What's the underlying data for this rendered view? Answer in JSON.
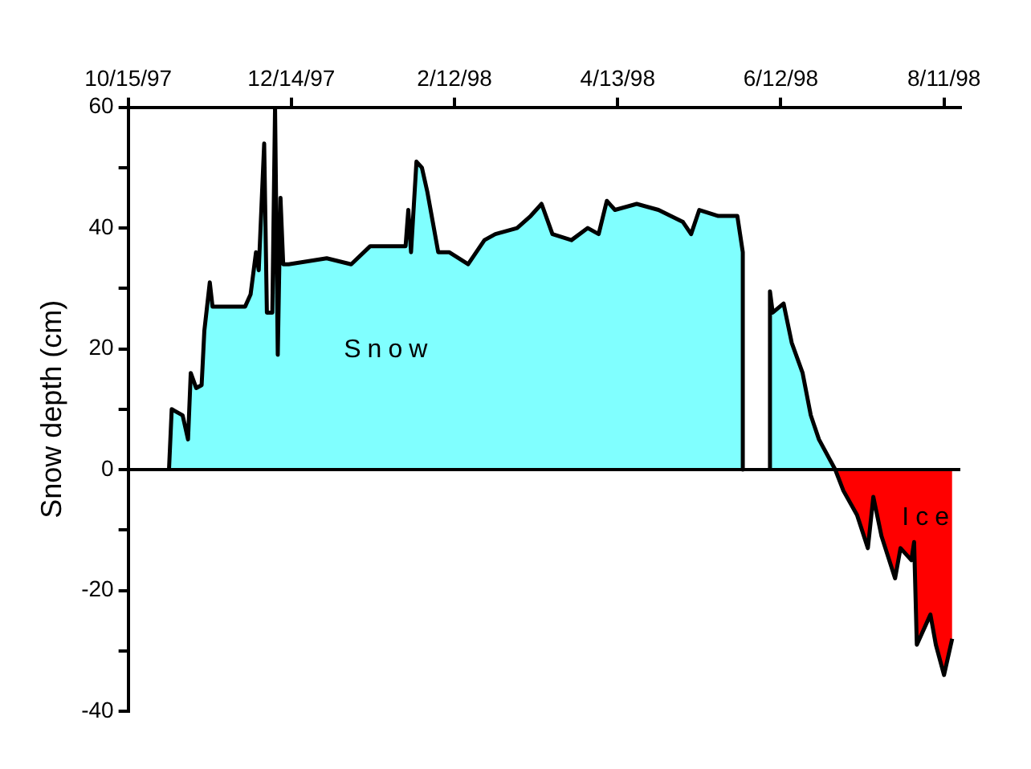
{
  "chart_data": {
    "type": "area",
    "ylabel": "Snow depth (cm)",
    "xlim": [
      "1997-10-15",
      "1998-08-17"
    ],
    "xticks": [
      {
        "value": "1997-10-15",
        "label": "10/15/97"
      },
      {
        "value": "1997-12-14",
        "label": "12/14/97"
      },
      {
        "value": "1998-02-12",
        "label": "2/12/98"
      },
      {
        "value": "1998-04-13",
        "label": "4/13/98"
      },
      {
        "value": "1998-06-12",
        "label": "6/12/98"
      },
      {
        "value": "1998-08-11",
        "label": "8/11/98"
      }
    ],
    "ylim": [
      -40,
      60
    ],
    "yticks": [
      -40,
      {
        "value": -30,
        "label": null
      },
      -20,
      {
        "value": -10,
        "label": null
      },
      0,
      {
        "value": 10,
        "label": null
      },
      20,
      {
        "value": 30,
        "label": null
      },
      40,
      {
        "value": 50,
        "label": null
      },
      60
    ],
    "grid": false,
    "legend": false,
    "marker": "none",
    "ref_lines": [
      {
        "axis": "y",
        "value": 0,
        "color": "#000000"
      }
    ],
    "series": [
      {
        "name": "Snow",
        "color": "#80ffff",
        "x": [
          "1997-10-30",
          "1997-10-31",
          "1997-11-04",
          "1997-11-06",
          "1997-11-07",
          "1997-11-09",
          "1997-11-11",
          "1997-11-12",
          "1997-11-14",
          "1997-11-15",
          "1997-11-27",
          "1997-11-29",
          "1997-12-01",
          "1997-12-02",
          "1997-12-04",
          "1997-12-05",
          "1997-12-07",
          "1997-12-08",
          "1997-12-09",
          "1997-12-10",
          "1997-12-11",
          "1997-12-13",
          "1997-12-27",
          "1998-01-05",
          "1998-01-12",
          "1998-01-25",
          "1998-01-26",
          "1998-01-27",
          "1998-01-29",
          "1998-01-31",
          "1998-02-02",
          "1998-02-04",
          "1998-02-06",
          "1998-02-10",
          "1998-02-17",
          "1998-02-23",
          "1998-02-27",
          "1998-03-07",
          "1998-03-12",
          "1998-03-16",
          "1998-03-20",
          "1998-03-27",
          "1998-04-02",
          "1998-04-06",
          "1998-04-09",
          "1998-04-12",
          "1998-04-20",
          "1998-04-28",
          "1998-05-07",
          "1998-05-10",
          "1998-05-13",
          "1998-05-20",
          "1998-05-27",
          "1998-05-28",
          "1998-05-29",
          "1998-05-29",
          "1998-06-04",
          "1998-06-08",
          "1998-06-08",
          "1998-06-09",
          "1998-06-13",
          "1998-06-16",
          "1998-06-20",
          "1998-06-23",
          "1998-06-26",
          "1998-07-02"
        ],
        "values": [
          0,
          10,
          9,
          5,
          16,
          13.5,
          14,
          23,
          31,
          27,
          27,
          29,
          36,
          33,
          54,
          26,
          26,
          60,
          19,
          45,
          34,
          34,
          35,
          34,
          37,
          37,
          43,
          36,
          51,
          50,
          46,
          41,
          36,
          36,
          34,
          38,
          39,
          40,
          42,
          44,
          39,
          38,
          40,
          39,
          44.5,
          43,
          44,
          43,
          41,
          39,
          43,
          42,
          42,
          39,
          36,
          0,
          null,
          0,
          29.5,
          26,
          27.5,
          21,
          16,
          9,
          5,
          0
        ]
      },
      {
        "name": "Ice",
        "color": "#ff0000",
        "x": [
          "1998-07-02",
          "1998-07-05",
          "1998-07-10",
          "1998-07-14",
          "1998-07-16",
          "1998-07-19",
          "1998-07-24",
          "1998-07-26",
          "1998-07-30",
          "1998-07-31",
          "1998-08-01",
          "1998-08-06",
          "1998-08-08",
          "1998-08-11",
          "1998-08-13",
          "1998-08-14"
        ],
        "values": [
          0,
          -3.5,
          -7.5,
          -13,
          -4.5,
          -11,
          -18,
          -13,
          -15,
          -12,
          -29,
          -24,
          -29,
          -34,
          -30,
          -28
        ]
      }
    ]
  }
}
